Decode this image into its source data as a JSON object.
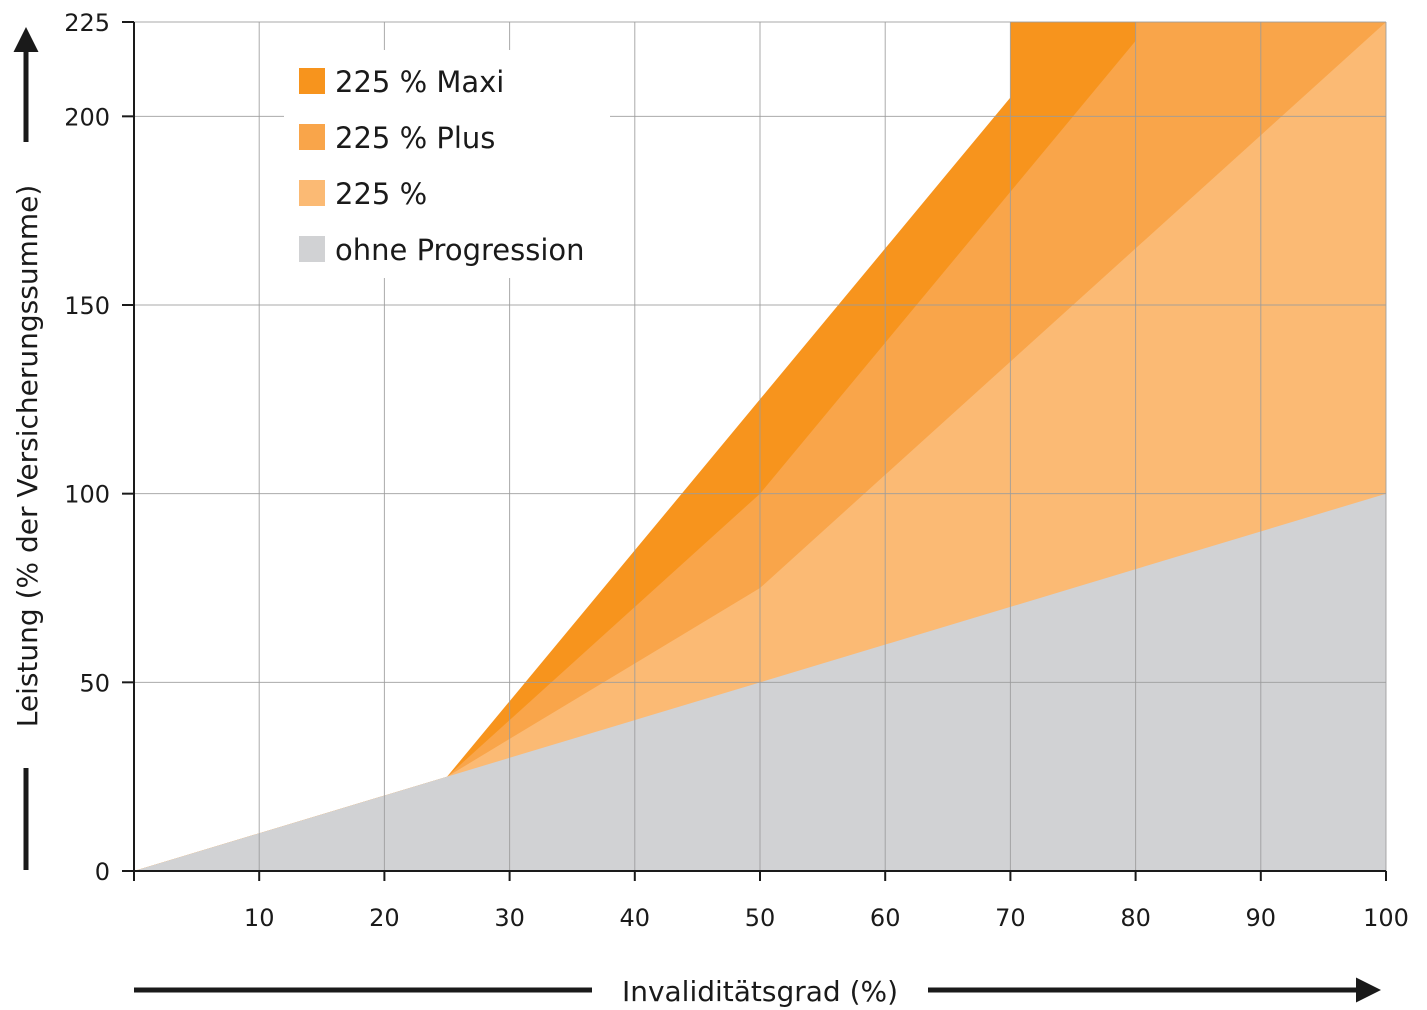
{
  "chart_data": {
    "type": "area",
    "xlabel": "Invaliditätsgrad (%)",
    "ylabel": "Leistung (% der Versicherungssumme)",
    "xlim": [
      0,
      100
    ],
    "ylim": [
      0,
      225
    ],
    "x_ticks": [
      10,
      20,
      30,
      40,
      50,
      60,
      70,
      80,
      90,
      100
    ],
    "x_tick_labels": [
      "10",
      "20",
      "30",
      "40",
      "50",
      "60",
      "70",
      "80",
      "90",
      "100"
    ],
    "y_ticks": [
      0,
      50,
      100,
      150,
      200,
      225
    ],
    "y_tick_labels": [
      "0",
      "50",
      "100",
      "150",
      "200",
      "225"
    ],
    "grid": true,
    "legend_position": "top-left",
    "series": [
      {
        "name": "225 % Maxi",
        "color": "#f7941d",
        "points": [
          [
            0,
            0
          ],
          [
            25,
            25
          ],
          [
            30,
            45
          ],
          [
            40,
            85
          ],
          [
            50,
            125
          ],
          [
            55,
            145
          ],
          [
            60,
            165
          ],
          [
            65,
            185
          ],
          [
            70,
            205
          ],
          [
            70,
            225
          ],
          [
            100,
            225
          ]
        ]
      },
      {
        "name": "225 % Plus",
        "color": "#f9a54a",
        "points": [
          [
            0,
            0
          ],
          [
            25,
            25
          ],
          [
            30,
            40
          ],
          [
            40,
            70
          ],
          [
            50,
            100
          ],
          [
            60,
            140
          ],
          [
            70,
            180
          ],
          [
            80,
            220
          ],
          [
            80,
            225
          ],
          [
            100,
            225
          ]
        ]
      },
      {
        "name": "225 %",
        "color": "#fbba74",
        "points": [
          [
            0,
            0
          ],
          [
            25,
            25
          ],
          [
            30,
            35
          ],
          [
            40,
            55
          ],
          [
            50,
            75
          ],
          [
            60,
            105
          ],
          [
            70,
            135
          ],
          [
            80,
            165
          ],
          [
            90,
            195
          ],
          [
            100,
            225
          ]
        ]
      },
      {
        "name": "ohne Progression",
        "color": "#d1d2d4",
        "points": [
          [
            0,
            0
          ],
          [
            100,
            100
          ]
        ]
      }
    ]
  }
}
